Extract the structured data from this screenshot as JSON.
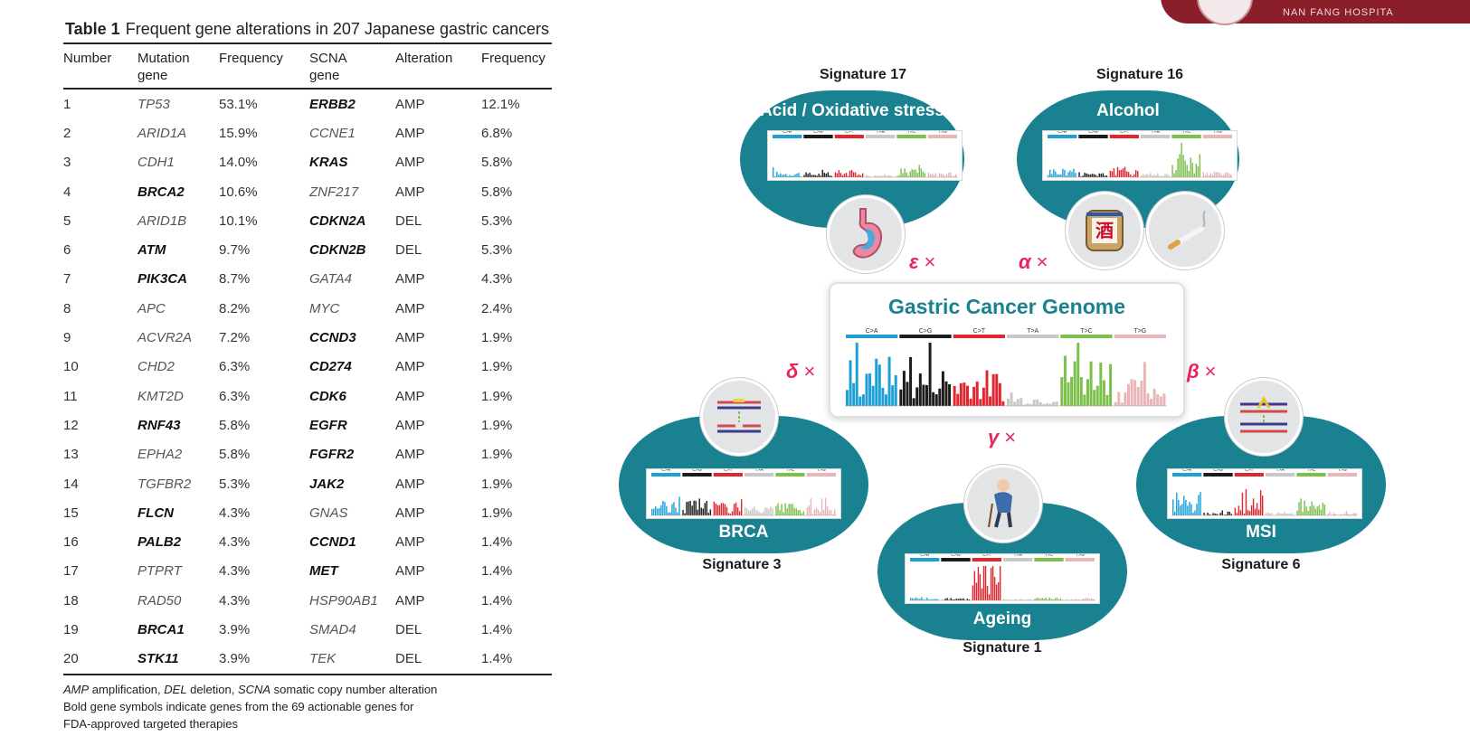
{
  "table": {
    "label": "Table 1",
    "caption": "Frequent gene alterations in 207 Japanese gastric cancers",
    "headers": [
      "Number",
      "Mutation gene",
      "Frequency",
      "SCNA gene",
      "Alteration",
      "Frequency"
    ],
    "header_lines": [
      [
        "Number"
      ],
      [
        "Mutation",
        "gene"
      ],
      [
        "Frequency"
      ],
      [
        "SCNA",
        "gene"
      ],
      [
        "Alteration"
      ],
      [
        "Frequency"
      ]
    ],
    "rows": [
      {
        "num": "1",
        "mut": "TP53",
        "mut_bold": false,
        "mfreq": "53.1%",
        "scna": "ERBB2",
        "scna_bold": true,
        "alt": "AMP",
        "sfreq": "12.1%"
      },
      {
        "num": "2",
        "mut": "ARID1A",
        "mut_bold": false,
        "mfreq": "15.9%",
        "scna": "CCNE1",
        "scna_bold": false,
        "alt": "AMP",
        "sfreq": "6.8%"
      },
      {
        "num": "3",
        "mut": "CDH1",
        "mut_bold": false,
        "mfreq": "14.0%",
        "scna": "KRAS",
        "scna_bold": true,
        "alt": "AMP",
        "sfreq": "5.8%"
      },
      {
        "num": "4",
        "mut": "BRCA2",
        "mut_bold": true,
        "mfreq": "10.6%",
        "scna": "ZNF217",
        "scna_bold": false,
        "alt": "AMP",
        "sfreq": "5.8%"
      },
      {
        "num": "5",
        "mut": "ARID1B",
        "mut_bold": false,
        "mfreq": "10.1%",
        "scna": "CDKN2A",
        "scna_bold": true,
        "alt": "DEL",
        "sfreq": "5.3%"
      },
      {
        "num": "6",
        "mut": "ATM",
        "mut_bold": true,
        "mfreq": "9.7%",
        "scna": "CDKN2B",
        "scna_bold": true,
        "alt": "DEL",
        "sfreq": "5.3%"
      },
      {
        "num": "7",
        "mut": "PIK3CA",
        "mut_bold": true,
        "mfreq": "8.7%",
        "scna": "GATA4",
        "scna_bold": false,
        "alt": "AMP",
        "sfreq": "4.3%"
      },
      {
        "num": "8",
        "mut": "APC",
        "mut_bold": false,
        "mfreq": "8.2%",
        "scna": "MYC",
        "scna_bold": false,
        "alt": "AMP",
        "sfreq": "2.4%"
      },
      {
        "num": "9",
        "mut": "ACVR2A",
        "mut_bold": false,
        "mfreq": "7.2%",
        "scna": "CCND3",
        "scna_bold": true,
        "alt": "AMP",
        "sfreq": "1.9%"
      },
      {
        "num": "10",
        "mut": "CHD2",
        "mut_bold": false,
        "mfreq": "6.3%",
        "scna": "CD274",
        "scna_bold": true,
        "alt": "AMP",
        "sfreq": "1.9%"
      },
      {
        "num": "11",
        "mut": "KMT2D",
        "mut_bold": false,
        "mfreq": "6.3%",
        "scna": "CDK6",
        "scna_bold": true,
        "alt": "AMP",
        "sfreq": "1.9%"
      },
      {
        "num": "12",
        "mut": "RNF43",
        "mut_bold": true,
        "mfreq": "5.8%",
        "scna": "EGFR",
        "scna_bold": true,
        "alt": "AMP",
        "sfreq": "1.9%"
      },
      {
        "num": "13",
        "mut": "EPHA2",
        "mut_bold": false,
        "mfreq": "5.8%",
        "scna": "FGFR2",
        "scna_bold": true,
        "alt": "AMP",
        "sfreq": "1.9%"
      },
      {
        "num": "14",
        "mut": "TGFBR2",
        "mut_bold": false,
        "mfreq": "5.3%",
        "scna": "JAK2",
        "scna_bold": true,
        "alt": "AMP",
        "sfreq": "1.9%"
      },
      {
        "num": "15",
        "mut": "FLCN",
        "mut_bold": true,
        "mfreq": "4.3%",
        "scna": "GNAS",
        "scna_bold": false,
        "alt": "AMP",
        "sfreq": "1.9%"
      },
      {
        "num": "16",
        "mut": "PALB2",
        "mut_bold": true,
        "mfreq": "4.3%",
        "scna": "CCND1",
        "scna_bold": true,
        "alt": "AMP",
        "sfreq": "1.4%"
      },
      {
        "num": "17",
        "mut": "PTPRT",
        "mut_bold": false,
        "mfreq": "4.3%",
        "scna": "MET",
        "scna_bold": true,
        "alt": "AMP",
        "sfreq": "1.4%"
      },
      {
        "num": "18",
        "mut": "RAD50",
        "mut_bold": false,
        "mfreq": "4.3%",
        "scna": "HSP90AB1",
        "scna_bold": false,
        "alt": "AMP",
        "sfreq": "1.4%"
      },
      {
        "num": "19",
        "mut": "BRCA1",
        "mut_bold": true,
        "mfreq": "3.9%",
        "scna": "SMAD4",
        "scna_bold": false,
        "alt": "DEL",
        "sfreq": "1.4%"
      },
      {
        "num": "20",
        "mut": "STK11",
        "mut_bold": true,
        "mfreq": "3.9%",
        "scna": "TEK",
        "scna_bold": false,
        "alt": "DEL",
        "sfreq": "1.4%"
      }
    ],
    "footnote": {
      "abbr_amp": "AMP",
      "abbr_amp_text": " amplification, ",
      "abbr_del": "DEL",
      "abbr_del_text": " deletion, ",
      "abbr_scna": "SCNA",
      "abbr_scna_text": " somatic copy number alteration",
      "line2": "Bold gene symbols indicate genes from the 69 actionable genes for",
      "line3": "FDA-approved targeted therapies"
    }
  },
  "figure": {
    "center_title": "Gastric Cancer Genome",
    "mutation_classes": [
      "C>A",
      "C>G",
      "C>T",
      "T>A",
      "T>C",
      "T>G"
    ],
    "class_colors": [
      "#1ea0d6",
      "#1c1c1c",
      "#e0262f",
      "#c8c8c8",
      "#7cbf4a",
      "#eab5b8"
    ],
    "blob_color": "#1a8190",
    "coefficient_color": "#e8245b",
    "signatures": [
      {
        "id": "sig17",
        "label": "Signature 17",
        "title": "Acid / Oxidative stress",
        "coef": "ε",
        "icon": "stomach-icon"
      },
      {
        "id": "sig16",
        "label": "Signature 16",
        "title": "Alcohol",
        "coef": "α",
        "icon": "sake-barrel-icon",
        "icon2": "cigarette-icon"
      },
      {
        "id": "sig3",
        "label": "Signature 3",
        "title": "BRCA",
        "coef": "δ",
        "icon": "dna-double-strand-break-icon"
      },
      {
        "id": "sig6",
        "label": "Signature 6",
        "title": "MSI",
        "coef": "β",
        "icon": "dna-mismatch-icon"
      },
      {
        "id": "sig1",
        "label": "Signature 1",
        "title": "Ageing",
        "coef": "γ",
        "icon": "elderly-person-icon"
      }
    ],
    "times": "×"
  },
  "logo": {
    "text": "NAN FANG HOSPITA"
  }
}
